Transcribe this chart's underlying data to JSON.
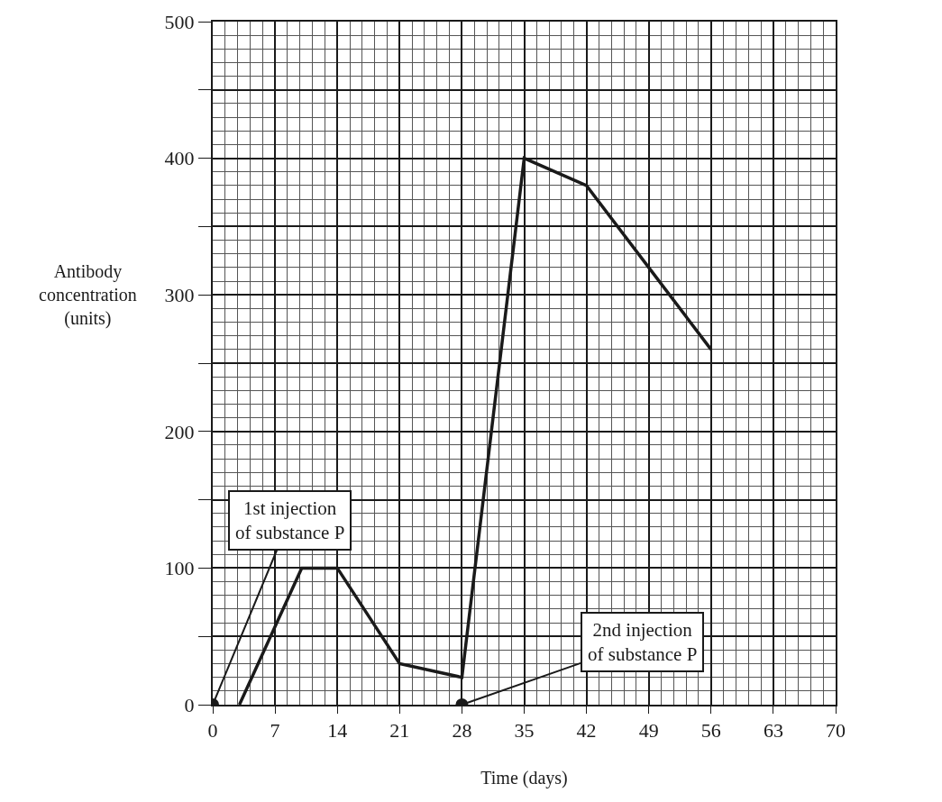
{
  "chart_data": {
    "type": "line",
    "xlabel": "Time (days)",
    "ylabel": "Antibody concentration (units)",
    "xlim": [
      0,
      70
    ],
    "xticks": [
      0,
      7,
      14,
      21,
      28,
      35,
      42,
      49,
      56,
      63,
      70
    ],
    "ylim": [
      0,
      500
    ],
    "yticks": [
      0,
      {
        "value": 50,
        "label": null
      },
      100,
      {
        "value": 150,
        "label": null
      },
      200,
      {
        "value": 250,
        "label": null
      },
      300,
      {
        "value": 350,
        "label": null
      },
      400,
      {
        "value": 450,
        "label": null
      },
      500
    ],
    "grid": true,
    "marker": "none",
    "line_style": "solid",
    "series": [
      {
        "color": "#1a1a1a",
        "x": [
          3,
          10,
          14,
          21,
          28,
          35,
          42,
          49,
          56
        ],
        "values": [
          0,
          100,
          100,
          30,
          20,
          400,
          380,
          320,
          260
        ]
      },
      {
        "type": "scatter",
        "marker": "circle",
        "color": "#1a1a1a",
        "x": [
          0,
          28
        ],
        "values": [
          0,
          0
        ]
      }
    ],
    "annotations": [
      {
        "text": "1st injection\nof substance P",
        "x": 0,
        "y": 0
      },
      {
        "text": "2nd injection\nof substance P",
        "x": 28,
        "y": 0
      }
    ]
  }
}
